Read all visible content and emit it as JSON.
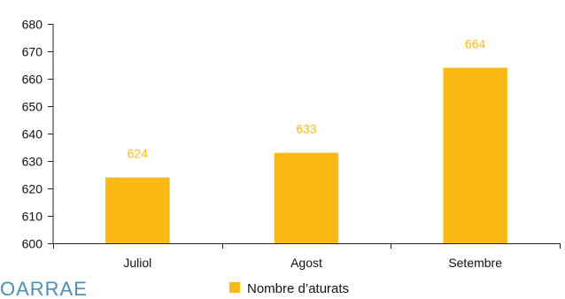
{
  "chart_data": {
    "type": "bar",
    "categories": [
      "Juliol",
      "Agost",
      "Setembre"
    ],
    "series": [
      {
        "name": "Nombre d’aturats",
        "values": [
          624,
          633,
          664
        ],
        "color": "#fdb913"
      }
    ],
    "data_labels": [
      "624",
      "633",
      "664"
    ],
    "ylim": [
      600,
      680
    ],
    "yticks": [
      600,
      610,
      620,
      630,
      640,
      650,
      660,
      670,
      680
    ],
    "grid": false,
    "legend_position": "bottom",
    "label_color": "#fdb913",
    "title": "",
    "xlabel": "",
    "ylabel": ""
  },
  "footer": {
    "text": "OARRAE"
  }
}
